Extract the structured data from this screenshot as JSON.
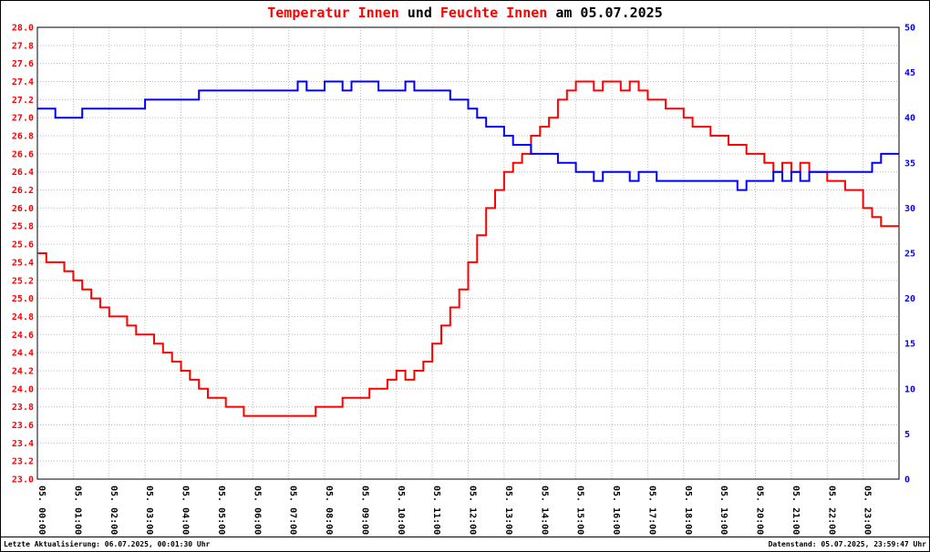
{
  "title": {
    "part1": "Temperatur Innen",
    "part2": " und ",
    "part3": "Feuchte Innen",
    "part4": " am 05.07.2025"
  },
  "footer": {
    "left": "Letzte Aktualisierung: 06.07.2025, 00:01:30 Uhr",
    "right": "Datenstand: 05.07.2025, 23:59:47 Uhr"
  },
  "colors": {
    "temperature_line": "#ff0000",
    "humidity_line": "#0000ff",
    "left_axis_labels": "#ff0000",
    "right_axis_labels": "#0000ff",
    "grid": "#bdbdbd",
    "frame": "#000000",
    "title_highlight": "#ff0000"
  },
  "chart_data": {
    "type": "line",
    "title": "Temperatur Innen und Feuchte Innen am 05.07.2025",
    "grid": true,
    "x_interval_minutes": 15,
    "x_range_hours": [
      0,
      24
    ],
    "x_labels": [
      "05. 00:00",
      "05. 01:00",
      "05. 02:00",
      "05. 03:00",
      "05. 04:00",
      "05. 05:00",
      "05. 06:00",
      "05. 07:00",
      "05. 08:00",
      "05. 09:00",
      "05. 10:00",
      "05. 11:00",
      "05. 12:00",
      "05. 13:00",
      "05. 14:00",
      "05. 15:00",
      "05. 16:00",
      "05. 17:00",
      "05. 18:00",
      "05. 19:00",
      "05. 20:00",
      "05. 21:00",
      "05. 22:00",
      "05. 23:00"
    ],
    "y_left": {
      "range": [
        23.0,
        28.0
      ],
      "ticks": [
        "28.0",
        "27.8",
        "27.6",
        "27.4",
        "27.2",
        "27.0",
        "26.8",
        "26.6",
        "26.4",
        "26.2",
        "26.0",
        "25.8",
        "25.6",
        "25.4",
        "25.2",
        "25.0",
        "24.8",
        "24.6",
        "24.4",
        "24.2",
        "24.0",
        "23.8",
        "23.6",
        "23.4",
        "23.2",
        "23.0"
      ]
    },
    "y_right": {
      "range": [
        0,
        50
      ],
      "ticks": [
        "50",
        "45",
        "40",
        "35",
        "30",
        "25",
        "20",
        "15",
        "10",
        "5",
        "0"
      ]
    },
    "series": [
      {
        "name": "Temperatur Innen",
        "axis": "left",
        "color": "#ff0000",
        "values": [
          25.5,
          25.4,
          25.4,
          25.3,
          25.2,
          25.1,
          25.0,
          24.9,
          24.8,
          24.8,
          24.7,
          24.6,
          24.6,
          24.5,
          24.4,
          24.3,
          24.2,
          24.1,
          24.0,
          23.9,
          23.9,
          23.8,
          23.8,
          23.7,
          23.7,
          23.7,
          23.7,
          23.7,
          23.7,
          23.7,
          23.7,
          23.8,
          23.8,
          23.8,
          23.9,
          23.9,
          23.9,
          24.0,
          24.0,
          24.1,
          24.2,
          24.1,
          24.2,
          24.3,
          24.5,
          24.7,
          24.9,
          25.1,
          25.4,
          25.7,
          26.0,
          26.2,
          26.4,
          26.5,
          26.6,
          26.8,
          26.9,
          27.0,
          27.2,
          27.3,
          27.4,
          27.4,
          27.3,
          27.4,
          27.4,
          27.3,
          27.4,
          27.3,
          27.2,
          27.2,
          27.1,
          27.1,
          27.0,
          26.9,
          26.9,
          26.8,
          26.8,
          26.7,
          26.7,
          26.6,
          26.6,
          26.5,
          26.4,
          26.5,
          26.4,
          26.5,
          26.4,
          26.4,
          26.3,
          26.3,
          26.2,
          26.2,
          26.0,
          25.9,
          25.8,
          25.8
        ]
      },
      {
        "name": "Feuchte Innen",
        "axis": "right",
        "color": "#0000ff",
        "values": [
          41,
          41,
          40,
          40,
          40,
          41,
          41,
          41,
          41,
          41,
          41,
          41,
          42,
          42,
          42,
          42,
          42,
          42,
          43,
          43,
          43,
          43,
          43,
          43,
          43,
          43,
          43,
          43,
          43,
          44,
          43,
          43,
          44,
          44,
          43,
          44,
          44,
          44,
          43,
          43,
          43,
          44,
          43,
          43,
          43,
          43,
          42,
          42,
          41,
          40,
          39,
          39,
          38,
          37,
          37,
          36,
          36,
          36,
          35,
          35,
          34,
          34,
          33,
          34,
          34,
          34,
          33,
          34,
          34,
          33,
          33,
          33,
          33,
          33,
          33,
          33,
          33,
          33,
          32,
          33,
          33,
          33,
          34,
          33,
          34,
          33,
          34,
          34,
          34,
          34,
          34,
          34,
          34,
          35,
          36,
          36
        ]
      }
    ]
  }
}
